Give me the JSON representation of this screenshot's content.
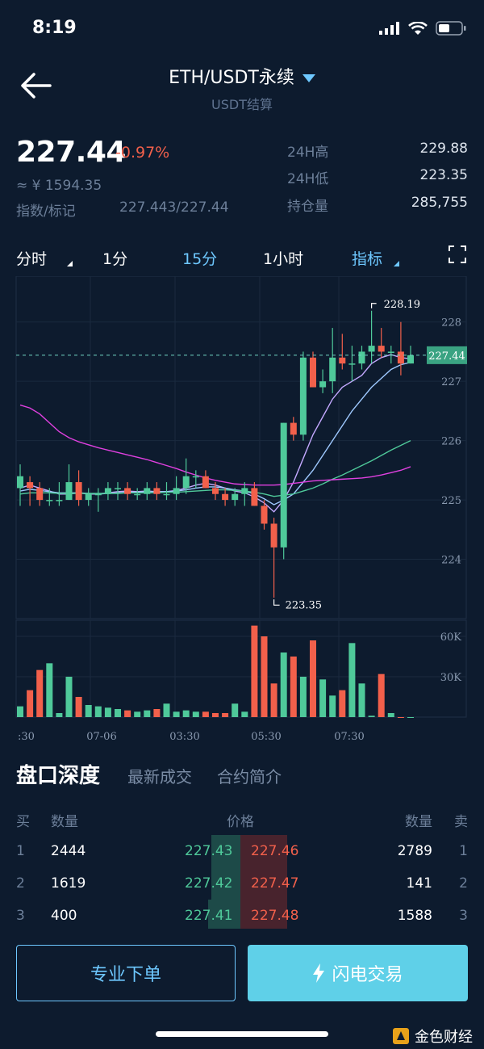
{
  "status": {
    "time": "8:19"
  },
  "header": {
    "title": "ETH/USDT永续",
    "subtitle": "USDT结算"
  },
  "price": {
    "last": "227.44",
    "change": "-0.97%",
    "cny": "≈ ¥ 1594.35",
    "index_label": "指数/标记",
    "index_value": "227.443/227.44"
  },
  "stats": [
    {
      "label": "24H高",
      "value": "229.88"
    },
    {
      "label": "24H低",
      "value": "223.35"
    },
    {
      "label": "持仓量",
      "value": "285,755"
    }
  ],
  "tabs": [
    {
      "label": "分时"
    },
    {
      "label": "1分"
    },
    {
      "label": "15分"
    },
    {
      "label": "1小时"
    },
    {
      "label": "指标"
    }
  ],
  "colors": {
    "up": "#4fc99a",
    "down": "#f2604b",
    "accent": "#6ec8ff",
    "bg": "#0d1b2e",
    "ma1": "#c4a9ff",
    "ma2": "#9fc9ff",
    "ma3": "#4fc99a",
    "ma4": "#e040e0"
  },
  "chart_data": {
    "type": "candlestick",
    "y_ticks": [
      "228",
      "227",
      "226",
      "225",
      "224"
    ],
    "price_ylim": [
      223.0,
      228.5
    ],
    "last_price_label": "227.44",
    "last_price": 227.44,
    "max_label": "228.19",
    "min_label": "223.35",
    "candles": [
      {
        "o": 225.2,
        "h": 225.6,
        "l": 224.9,
        "c": 225.4
      },
      {
        "o": 225.3,
        "h": 225.4,
        "l": 224.9,
        "c": 225.2
      },
      {
        "o": 225.2,
        "h": 225.3,
        "l": 224.9,
        "c": 225.0
      },
      {
        "o": 225.0,
        "h": 225.2,
        "l": 224.9,
        "c": 225.0
      },
      {
        "o": 225.0,
        "h": 225.3,
        "l": 224.9,
        "c": 225.0
      },
      {
        "o": 225.0,
        "h": 225.6,
        "l": 225.0,
        "c": 225.3
      },
      {
        "o": 225.3,
        "h": 225.5,
        "l": 224.9,
        "c": 225.0
      },
      {
        "o": 225.0,
        "h": 225.2,
        "l": 224.9,
        "c": 225.1
      },
      {
        "o": 225.1,
        "h": 225.2,
        "l": 224.8,
        "c": 225.1
      },
      {
        "o": 225.1,
        "h": 225.3,
        "l": 225.0,
        "c": 225.2
      },
      {
        "o": 225.2,
        "h": 225.3,
        "l": 225.0,
        "c": 225.2
      },
      {
        "o": 225.2,
        "h": 225.3,
        "l": 225.0,
        "c": 225.1
      },
      {
        "o": 225.1,
        "h": 225.2,
        "l": 225.0,
        "c": 225.1
      },
      {
        "o": 225.1,
        "h": 225.3,
        "l": 225.0,
        "c": 225.2
      },
      {
        "o": 225.2,
        "h": 225.3,
        "l": 225.0,
        "c": 225.1
      },
      {
        "o": 225.1,
        "h": 225.3,
        "l": 225.0,
        "c": 225.1
      },
      {
        "o": 225.1,
        "h": 225.4,
        "l": 225.0,
        "c": 225.2
      },
      {
        "o": 225.2,
        "h": 225.7,
        "l": 225.1,
        "c": 225.4
      },
      {
        "o": 225.4,
        "h": 225.5,
        "l": 225.2,
        "c": 225.4
      },
      {
        "o": 225.4,
        "h": 225.5,
        "l": 225.2,
        "c": 225.2
      },
      {
        "o": 225.2,
        "h": 225.3,
        "l": 225.0,
        "c": 225.1
      },
      {
        "o": 225.1,
        "h": 225.2,
        "l": 224.9,
        "c": 225.0
      },
      {
        "o": 225.0,
        "h": 225.2,
        "l": 224.9,
        "c": 225.1
      },
      {
        "o": 225.1,
        "h": 225.3,
        "l": 224.9,
        "c": 225.2
      },
      {
        "o": 225.2,
        "h": 225.3,
        "l": 224.9,
        "c": 224.9
      },
      {
        "o": 224.9,
        "h": 225.0,
        "l": 224.5,
        "c": 224.6
      },
      {
        "o": 224.6,
        "h": 224.7,
        "l": 223.35,
        "c": 224.2
      },
      {
        "o": 224.2,
        "h": 226.3,
        "l": 224.0,
        "c": 226.3
      },
      {
        "o": 226.3,
        "h": 226.4,
        "l": 226.0,
        "c": 226.1
      },
      {
        "o": 226.1,
        "h": 227.5,
        "l": 226.0,
        "c": 227.4
      },
      {
        "o": 227.4,
        "h": 227.5,
        "l": 226.9,
        "c": 226.9
      },
      {
        "o": 226.9,
        "h": 227.2,
        "l": 226.8,
        "c": 227.0
      },
      {
        "o": 227.0,
        "h": 227.9,
        "l": 226.8,
        "c": 227.4
      },
      {
        "o": 227.4,
        "h": 227.8,
        "l": 227.2,
        "c": 227.3
      },
      {
        "o": 227.3,
        "h": 227.6,
        "l": 227.0,
        "c": 227.3
      },
      {
        "o": 227.3,
        "h": 227.6,
        "l": 227.2,
        "c": 227.5
      },
      {
        "o": 227.5,
        "h": 228.19,
        "l": 227.3,
        "c": 227.6
      },
      {
        "o": 227.6,
        "h": 227.9,
        "l": 227.4,
        "c": 227.5
      },
      {
        "o": 227.5,
        "h": 227.6,
        "l": 227.3,
        "c": 227.5
      },
      {
        "o": 227.5,
        "h": 228.0,
        "l": 227.1,
        "c": 227.3
      },
      {
        "o": 227.3,
        "h": 227.6,
        "l": 227.3,
        "c": 227.44
      }
    ],
    "ma_series": [
      {
        "values": [
          225.2,
          225.25,
          225.2,
          225.15,
          225.1,
          225.1,
          225.12,
          225.1,
          225.1,
          225.12,
          225.14,
          225.15,
          225.14,
          225.15,
          225.14,
          225.14,
          225.16,
          225.2,
          225.25,
          225.28,
          225.25,
          225.2,
          225.15,
          225.12,
          225.05,
          224.95,
          224.8,
          225.0,
          225.3,
          225.7,
          226.1,
          226.4,
          226.7,
          226.9,
          227.0,
          227.1,
          227.3,
          227.4,
          227.45,
          227.4,
          227.38
        ]
      },
      {
        "values": [
          225.15,
          225.18,
          225.16,
          225.14,
          225.12,
          225.12,
          225.12,
          225.11,
          225.1,
          225.11,
          225.12,
          225.13,
          225.13,
          225.14,
          225.14,
          225.14,
          225.15,
          225.17,
          225.2,
          225.22,
          225.22,
          225.2,
          225.17,
          225.15,
          225.1,
          225.02,
          224.92,
          225.0,
          225.1,
          225.3,
          225.5,
          225.75,
          226.0,
          226.25,
          226.5,
          226.7,
          226.9,
          227.05,
          227.2,
          227.28,
          227.32
        ]
      },
      {
        "values": [
          225.1,
          225.12,
          225.12,
          225.12,
          225.11,
          225.11,
          225.11,
          225.11,
          225.11,
          225.11,
          225.11,
          225.12,
          225.12,
          225.12,
          225.12,
          225.13,
          225.13,
          225.14,
          225.15,
          225.16,
          225.17,
          225.17,
          225.16,
          225.15,
          225.13,
          225.1,
          225.06,
          225.08,
          225.1,
          225.15,
          225.2,
          225.27,
          225.35,
          225.42,
          225.5,
          225.58,
          225.66,
          225.75,
          225.84,
          225.92,
          226.0
        ]
      },
      {
        "values": [
          226.6,
          226.55,
          226.45,
          226.3,
          226.15,
          226.05,
          225.98,
          225.93,
          225.88,
          225.84,
          225.8,
          225.76,
          225.72,
          225.68,
          225.63,
          225.58,
          225.53,
          225.47,
          225.42,
          225.37,
          225.33,
          225.3,
          225.27,
          225.26,
          225.25,
          225.25,
          225.25,
          225.26,
          225.28,
          225.3,
          225.32,
          225.33,
          225.34,
          225.35,
          225.36,
          225.37,
          225.39,
          225.42,
          225.46,
          225.5,
          225.56
        ]
      }
    ],
    "volume_ticks": [
      "60K",
      "30K"
    ],
    "volume_ylim": [
      0,
      72000
    ],
    "volumes": [
      8000,
      20000,
      35000,
      40000,
      3000,
      30000,
      15000,
      9000,
      8000,
      7000,
      6000,
      5000,
      4000,
      5000,
      6000,
      10000,
      4000,
      5000,
      4000,
      4000,
      3000,
      3000,
      10000,
      4000,
      68000,
      60000,
      25000,
      48000,
      45000,
      30000,
      57000,
      28000,
      16000,
      20000,
      55000,
      25000,
      1000,
      32000,
      3000,
      0,
      0
    ],
    "x_ticks": [
      ":30",
      "07-06",
      "03:30",
      "05:30",
      "07:30"
    ]
  },
  "orderbook": {
    "tabs": [
      "盘口深度",
      "最新成交",
      "合约简介"
    ],
    "head": {
      "buy": "买",
      "qty": "数量",
      "price": "价格",
      "qty2": "数量",
      "sell": "卖"
    },
    "rows": [
      {
        "idx": "1",
        "bid_qty": "2444",
        "bid": "227.43",
        "ask": "227.46",
        "ask_qty": "2789",
        "idx2": "1"
      },
      {
        "idx": "2",
        "bid_qty": "1619",
        "bid": "227.42",
        "ask": "227.47",
        "ask_qty": "141",
        "idx2": "2"
      },
      {
        "idx": "3",
        "bid_qty": "400",
        "bid": "227.41",
        "ask": "227.48",
        "ask_qty": "1588",
        "idx2": "3"
      }
    ]
  },
  "actions": {
    "pro_order": "专业下单",
    "flash_trade": "闪电交易"
  },
  "watermark": "金色财经"
}
